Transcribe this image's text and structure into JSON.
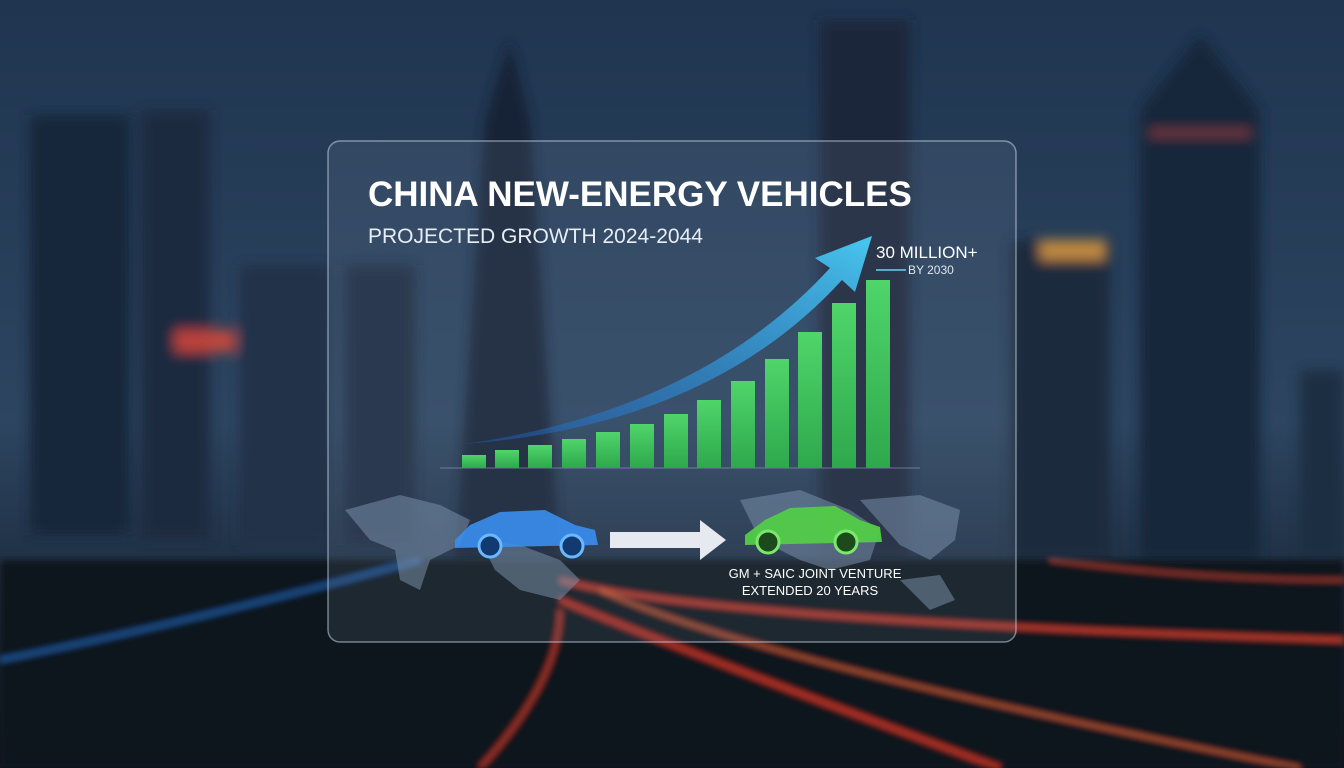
{
  "panel": {
    "title": "CHINA NEW-ENERGY VEHICLES",
    "subtitle": "PROJECTED GROWTH 2024-2044",
    "callout": {
      "value": "30 MILLION+",
      "note": "BY 2030"
    },
    "caption": [
      "GM + SAIC JOINT VENTURE",
      "EXTENDED 20 YEARS"
    ]
  }
}
